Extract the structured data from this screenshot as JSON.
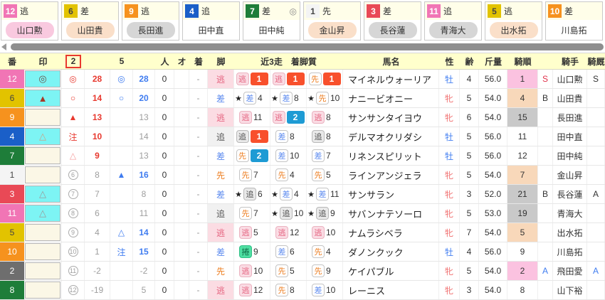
{
  "colors": {
    "waku": {
      "1": [
        "#F4F4F4",
        "#444444"
      ],
      "2": [
        "#6E6E6E",
        "#ffffff"
      ],
      "3": [
        "#E94956",
        "#ffffff"
      ],
      "4": [
        "#1A5FC8",
        "#ffffff"
      ],
      "5": [
        "#E2C300",
        "#444444"
      ],
      "6": [
        "#E2C300",
        "#444444"
      ],
      "7": [
        "#1E7D39",
        "#ffffff"
      ],
      "8": [
        "#1E7D39",
        "#ffffff"
      ],
      "9": [
        "#F6921E",
        "#ffffff"
      ],
      "10": [
        "#F6921E",
        "#ffffff"
      ],
      "11": [
        "#F175B5",
        "#ffffff"
      ],
      "12": [
        "#F175B5",
        "#ffffff"
      ]
    },
    "pill": {
      "pink": "#F9C9DF",
      "peach": "#FADFC9",
      "gray": "#D6D6D6",
      "none": "transparent"
    },
    "markbg": {
      "cyan": "#7DF4F4",
      "cream": "#FBF7E6"
    },
    "markc": {
      "brown": "#6D5047",
      "maroon": "#A63A28",
      "tan": "#C9A489",
      "gray": "#9A9A9A"
    },
    "kob": {
      "pink": "#FBC2E0",
      "peach": "#F8D8BA",
      "gray": "#C9C9C9",
      "none": "transparent"
    },
    "badge_first": "#F8502C",
    "badge_second": "#1E9BD4",
    "header_bg": "#FFFFCC",
    "header_box_border": "#E8392F"
  },
  "cards": [
    {
      "num": "12",
      "style": "逃",
      "mark": "",
      "jockey": "山口勲",
      "pill": "pink"
    },
    {
      "num": "6",
      "style": "差",
      "mark": "",
      "jockey": "山田貴",
      "pill": "peach"
    },
    {
      "num": "9",
      "style": "逃",
      "mark": "",
      "jockey": "長田進",
      "pill": "gray"
    },
    {
      "num": "4",
      "style": "追",
      "mark": "",
      "jockey": "田中直",
      "pill": "none"
    },
    {
      "num": "7",
      "style": "差",
      "mark": "◎",
      "jockey": "田中純",
      "pill": "none"
    },
    {
      "num": "1",
      "style": "先",
      "mark": "",
      "jockey": "金山昇",
      "pill": "peach"
    },
    {
      "num": "3",
      "style": "差",
      "mark": "",
      "jockey": "長谷蓮",
      "pill": "gray"
    },
    {
      "num": "11",
      "style": "追",
      "mark": "",
      "jockey": "青海大",
      "pill": "gray"
    },
    {
      "num": "5",
      "style": "逃",
      "mark": "",
      "jockey": "出水拓",
      "pill": "peach"
    },
    {
      "num": "10",
      "style": "差",
      "mark": "",
      "jockey": "川島拓",
      "pill": "none"
    }
  ],
  "table": {
    "headers": {
      "num": "番",
      "mark": "印",
      "c2": "2",
      "c2b": "",
      "c5": "5",
      "c5b": "",
      "pop": "人",
      "oz": "オ",
      "fin": "着",
      "leg": "脚",
      "runs": "近3走　着脚質",
      "name": "馬名",
      "sex": "性",
      "age": "齢",
      "wt": "斤量",
      "ko": "騎順",
      "fl": "",
      "jockey": "騎手",
      "kyu": "騎厩"
    },
    "rows": [
      {
        "num": "12",
        "mark": "◎",
        "markbg": "cyan",
        "markc": "brown",
        "m2": "◎",
        "m2circ": false,
        "m2c": "red",
        "v2": "28",
        "v2c": "red",
        "m5": "◎",
        "m5c": "blue",
        "v5": "28",
        "v5c": "blue",
        "pop": "0",
        "oz": "",
        "fin": "-",
        "leg": "逃",
        "legc": "nige",
        "runs": [
          {
            "star": "",
            "st": "逃",
            "stc": "nige",
            "pos": "1",
            "posb": "red"
          },
          {
            "star": "",
            "st": "逃",
            "stc": "nige",
            "pos": "1",
            "posb": "red"
          },
          {
            "star": "",
            "st": "先",
            "stc": "saki",
            "pos": "1",
            "posb": "red"
          }
        ],
        "name": "マイネルウォーリア",
        "sex": "牡",
        "sexc": "m",
        "age": "4",
        "wt": "56.0",
        "ko": "1",
        "kob": "pink",
        "fl": "S",
        "flc": "red",
        "jockey": "山口勲",
        "kyu": "S",
        "kyuc": ""
      },
      {
        "num": "6",
        "mark": "▲",
        "markbg": "cyan",
        "markc": "maroon",
        "m2": "○",
        "m2circ": false,
        "m2c": "red",
        "v2": "14",
        "v2c": "red",
        "m5": "○",
        "m5c": "blue",
        "v5": "20",
        "v5c": "blue",
        "pop": "0",
        "oz": "",
        "fin": "-",
        "leg": "差",
        "legc": "sashi",
        "runs": [
          {
            "star": "★",
            "st": "差",
            "stc": "sashi",
            "pos": "4",
            "posb": ""
          },
          {
            "star": "★",
            "st": "差",
            "stc": "sashi",
            "pos": "8",
            "posb": ""
          },
          {
            "star": "★",
            "st": "先",
            "stc": "saki",
            "pos": "10",
            "posb": ""
          }
        ],
        "name": "ナニービオニー",
        "sex": "牝",
        "sexc": "f",
        "age": "5",
        "wt": "54.0",
        "ko": "4",
        "kob": "peach",
        "fl": "B",
        "flc": "",
        "jockey": "山田貴",
        "kyu": "",
        "kyuc": ""
      },
      {
        "num": "9",
        "mark": "",
        "markbg": "cream",
        "markc": "gray",
        "m2": "▲",
        "m2circ": false,
        "m2c": "red",
        "v2": "13",
        "v2c": "red",
        "m5": "",
        "m5c": "gray",
        "v5": "13",
        "v5c": "gray",
        "pop": "0",
        "oz": "",
        "fin": "-",
        "leg": "逃",
        "legc": "nige",
        "runs": [
          {
            "star": "",
            "st": "逃",
            "stc": "nige",
            "pos": "11",
            "posb": ""
          },
          {
            "star": "",
            "st": "逃",
            "stc": "nige",
            "pos": "2",
            "posb": "blue"
          },
          {
            "star": "",
            "st": "逃",
            "stc": "nige",
            "pos": "8",
            "posb": ""
          }
        ],
        "name": "サンサンタイヨウ",
        "sex": "牝",
        "sexc": "f",
        "age": "6",
        "wt": "54.0",
        "ko": "15",
        "kob": "gray",
        "fl": "",
        "flc": "",
        "jockey": "長田進",
        "kyu": "",
        "kyuc": ""
      },
      {
        "num": "4",
        "mark": "△",
        "markbg": "cyan",
        "markc": "tan",
        "m2": "注",
        "m2circ": false,
        "m2c": "red",
        "v2": "10",
        "v2c": "red",
        "m5": "",
        "m5c": "gray",
        "v5": "14",
        "v5c": "gray",
        "pop": "0",
        "oz": "",
        "fin": "-",
        "leg": "追",
        "legc": "oi",
        "runs": [
          {
            "star": "",
            "st": "追",
            "stc": "oi",
            "pos": "1",
            "posb": "red"
          },
          {
            "star": "",
            "st": "差",
            "stc": "sashi",
            "pos": "8",
            "posb": ""
          },
          {
            "star": "",
            "st": "追",
            "stc": "oi",
            "pos": "8",
            "posb": ""
          }
        ],
        "name": "デルマオクリダシ",
        "sex": "牡",
        "sexc": "m",
        "age": "5",
        "wt": "56.0",
        "ko": "11",
        "kob": "none",
        "fl": "",
        "flc": "",
        "jockey": "田中直",
        "kyu": "",
        "kyuc": ""
      },
      {
        "num": "7",
        "mark": "",
        "markbg": "cream",
        "markc": "gray",
        "m2": "△",
        "m2circ": false,
        "m2c": "pinklight",
        "v2": "9",
        "v2c": "red",
        "m5": "",
        "m5c": "gray",
        "v5": "13",
        "v5c": "gray",
        "pop": "0",
        "oz": "",
        "fin": "-",
        "leg": "差",
        "legc": "sashi",
        "runs": [
          {
            "star": "",
            "st": "先",
            "stc": "saki",
            "pos": "2",
            "posb": "blue"
          },
          {
            "star": "",
            "st": "差",
            "stc": "sashi",
            "pos": "10",
            "posb": ""
          },
          {
            "star": "",
            "st": "差",
            "stc": "sashi",
            "pos": "7",
            "posb": ""
          }
        ],
        "name": "リネンスピリット",
        "sex": "牡",
        "sexc": "m",
        "age": "5",
        "wt": "56.0",
        "ko": "12",
        "kob": "none",
        "fl": "",
        "flc": "",
        "jockey": "田中純",
        "kyu": "",
        "kyuc": ""
      },
      {
        "num": "1",
        "mark": "",
        "markbg": "cream",
        "markc": "gray",
        "m2": "6",
        "m2circ": true,
        "m2c": "gray",
        "v2": "8",
        "v2c": "gray",
        "m5": "▲",
        "m5c": "blue",
        "v5": "16",
        "v5c": "blue",
        "pop": "0",
        "oz": "",
        "fin": "-",
        "leg": "先",
        "legc": "saki",
        "runs": [
          {
            "star": "",
            "st": "先",
            "stc": "saki",
            "pos": "7",
            "posb": ""
          },
          {
            "star": "",
            "st": "先",
            "stc": "saki",
            "pos": "4",
            "posb": ""
          },
          {
            "star": "",
            "st": "先",
            "stc": "saki",
            "pos": "5",
            "posb": ""
          }
        ],
        "name": "ラインアンジェラ",
        "sex": "牝",
        "sexc": "f",
        "age": "5",
        "wt": "54.0",
        "ko": "7",
        "kob": "peach",
        "fl": "",
        "flc": "",
        "jockey": "金山昇",
        "kyu": "",
        "kyuc": ""
      },
      {
        "num": "3",
        "mark": "△",
        "markbg": "cyan",
        "markc": "gray",
        "m2": "7",
        "m2circ": true,
        "m2c": "gray",
        "v2": "7",
        "v2c": "gray",
        "m5": "",
        "m5c": "gray",
        "v5": "8",
        "v5c": "gray",
        "pop": "0",
        "oz": "",
        "fin": "-",
        "leg": "差",
        "legc": "sashi",
        "runs": [
          {
            "star": "★",
            "st": "追",
            "stc": "oi",
            "pos": "6",
            "posb": ""
          },
          {
            "star": "★",
            "st": "差",
            "stc": "sashi",
            "pos": "4",
            "posb": ""
          },
          {
            "star": "★",
            "st": "差",
            "stc": "sashi",
            "pos": "11",
            "posb": ""
          }
        ],
        "name": "サンサラン",
        "sex": "牝",
        "sexc": "f",
        "age": "3",
        "wt": "52.0",
        "ko": "21",
        "kob": "gray",
        "fl": "B",
        "flc": "",
        "jockey": "長谷蓮",
        "kyu": "A",
        "kyuc": ""
      },
      {
        "num": "11",
        "mark": "△",
        "markbg": "cyan",
        "markc": "gray",
        "m2": "8",
        "m2circ": true,
        "m2c": "gray",
        "v2": "6",
        "v2c": "gray",
        "m5": "",
        "m5c": "gray",
        "v5": "11",
        "v5c": "gray",
        "pop": "0",
        "oz": "",
        "fin": "-",
        "leg": "追",
        "legc": "oi",
        "runs": [
          {
            "star": "",
            "st": "先",
            "stc": "saki",
            "pos": "7",
            "posb": ""
          },
          {
            "star": "★",
            "st": "追",
            "stc": "oi",
            "pos": "10",
            "posb": ""
          },
          {
            "star": "★",
            "st": "追",
            "stc": "oi",
            "pos": "9",
            "posb": ""
          }
        ],
        "name": "サバンナテソーロ",
        "sex": "牝",
        "sexc": "f",
        "age": "5",
        "wt": "53.0",
        "ko": "19",
        "kob": "gray",
        "fl": "",
        "flc": "",
        "jockey": "青海大",
        "kyu": "",
        "kyuc": ""
      },
      {
        "num": "5",
        "mark": "",
        "markbg": "cream",
        "markc": "gray",
        "m2": "9",
        "m2circ": true,
        "m2c": "gray",
        "v2": "4",
        "v2c": "gray",
        "m5": "△",
        "m5c": "blue",
        "v5": "14",
        "v5c": "blue",
        "pop": "0",
        "oz": "",
        "fin": "-",
        "leg": "逃",
        "legc": "nige",
        "runs": [
          {
            "star": "",
            "st": "逃",
            "stc": "nige",
            "pos": "5",
            "posb": ""
          },
          {
            "star": "",
            "st": "逃",
            "stc": "nige",
            "pos": "12",
            "posb": ""
          },
          {
            "star": "",
            "st": "逃",
            "stc": "nige",
            "pos": "10",
            "posb": ""
          }
        ],
        "name": "ナムラシベラ",
        "sex": "牝",
        "sexc": "f",
        "age": "7",
        "wt": "54.0",
        "ko": "5",
        "kob": "peach",
        "fl": "",
        "flc": "",
        "jockey": "出水拓",
        "kyu": "",
        "kyuc": ""
      },
      {
        "num": "10",
        "mark": "",
        "markbg": "cream",
        "markc": "gray",
        "m2": "10",
        "m2circ": true,
        "m2c": "gray",
        "v2": "1",
        "v2c": "gray",
        "m5": "注",
        "m5c": "blue",
        "v5": "15",
        "v5c": "blue",
        "pop": "0",
        "oz": "",
        "fin": "-",
        "leg": "差",
        "legc": "sashi",
        "runs": [
          {
            "star": "",
            "st": "捲",
            "stc": "makuri",
            "pos": "9",
            "posb": ""
          },
          {
            "star": "",
            "st": "差",
            "stc": "sashi",
            "pos": "6",
            "posb": ""
          },
          {
            "star": "",
            "st": "先",
            "stc": "saki",
            "pos": "4",
            "posb": ""
          }
        ],
        "name": "ダノンクック",
        "sex": "牡",
        "sexc": "m",
        "age": "4",
        "wt": "56.0",
        "ko": "9",
        "kob": "none",
        "fl": "",
        "flc": "",
        "jockey": "川島拓",
        "kyu": "",
        "kyuc": ""
      },
      {
        "num": "2",
        "mark": "",
        "markbg": "cream",
        "markc": "gray",
        "m2": "11",
        "m2circ": true,
        "m2c": "gray",
        "v2": "-2",
        "v2c": "gray",
        "m5": "",
        "m5c": "gray",
        "v5": "-2",
        "v5c": "gray",
        "pop": "0",
        "oz": "",
        "fin": "-",
        "leg": "先",
        "legc": "saki",
        "runs": [
          {
            "star": "",
            "st": "逃",
            "stc": "nige",
            "pos": "10",
            "posb": ""
          },
          {
            "star": "",
            "st": "先",
            "stc": "saki",
            "pos": "5",
            "posb": ""
          },
          {
            "star": "",
            "st": "先",
            "stc": "saki",
            "pos": "9",
            "posb": ""
          }
        ],
        "name": "ケイパブル",
        "sex": "牝",
        "sexc": "f",
        "age": "5",
        "wt": "54.0",
        "ko": "2",
        "kob": "pink",
        "fl": "A",
        "flc": "blue",
        "jockey": "飛田愛",
        "kyu": "A",
        "kyuc": "blue"
      },
      {
        "num": "8",
        "mark": "",
        "markbg": "cream",
        "markc": "gray",
        "m2": "12",
        "m2circ": true,
        "m2c": "gray",
        "v2": "-19",
        "v2c": "gray",
        "m5": "",
        "m5c": "gray",
        "v5": "5",
        "v5c": "gray",
        "pop": "0",
        "oz": "",
        "fin": "-",
        "leg": "逃",
        "legc": "nige",
        "runs": [
          {
            "star": "",
            "st": "逃",
            "stc": "nige",
            "pos": "12",
            "posb": ""
          },
          {
            "star": "",
            "st": "先",
            "stc": "saki",
            "pos": "8",
            "posb": ""
          },
          {
            "star": "",
            "st": "差",
            "stc": "sashi",
            "pos": "10",
            "posb": ""
          }
        ],
        "name": "レーニス",
        "sex": "牝",
        "sexc": "f",
        "age": "3",
        "wt": "54.0",
        "ko": "8",
        "kob": "none",
        "fl": "",
        "flc": "",
        "jockey": "山下裕",
        "kyu": "",
        "kyuc": ""
      }
    ]
  }
}
